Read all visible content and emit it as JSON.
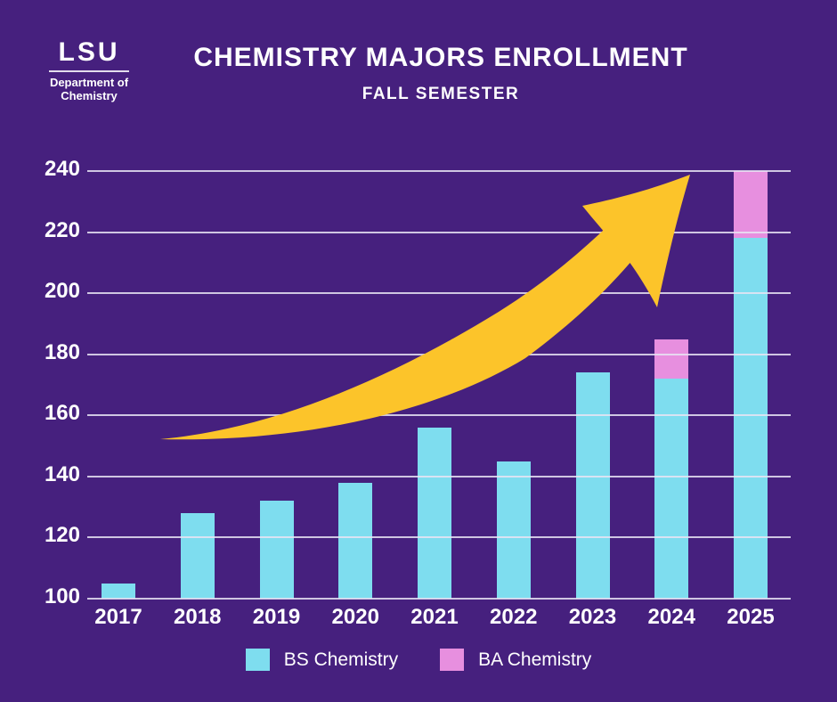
{
  "header": {
    "logo": {
      "acronym": "LSU",
      "dept_line1": "Department of",
      "dept_line2": "Chemistry"
    },
    "title": "CHEMISTRY MAJORS ENROLLMENT",
    "subtitle": "FALL SEMESTER"
  },
  "chart_data": {
    "type": "bar",
    "stacked": true,
    "title": "CHEMISTRY MAJORS ENROLLMENT",
    "subtitle": "FALL SEMESTER",
    "categories": [
      "2017",
      "2018",
      "2019",
      "2020",
      "2021",
      "2022",
      "2023",
      "2024",
      "2025"
    ],
    "series": [
      {
        "name": "BS Chemistry",
        "color": "#7EDDEF",
        "values": [
          105,
          128,
          132,
          138,
          156,
          145,
          174,
          172,
          218
        ]
      },
      {
        "name": "BA Chemistry",
        "color": "#E78FDF",
        "values": [
          0,
          0,
          0,
          0,
          0,
          0,
          0,
          13,
          22
        ]
      }
    ],
    "ylim": [
      100,
      240
    ],
    "yticks": [
      240,
      220,
      200,
      180,
      160,
      140,
      120,
      100
    ],
    "grid": true,
    "legend_position": "bottom",
    "annotation": "upward-trend-arrow"
  },
  "colors": {
    "background": "#46207E",
    "bs_bar": "#7EDDEF",
    "ba_bar": "#E78FDF",
    "arrow": "#FCC42A",
    "gridline": "rgba(232,228,243,0.85)",
    "text": "#FFFFFF"
  }
}
